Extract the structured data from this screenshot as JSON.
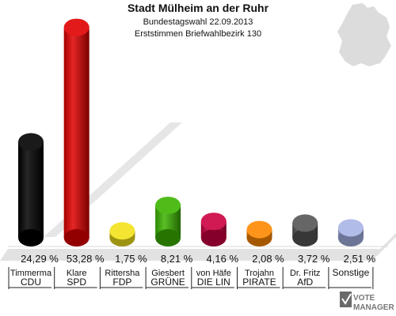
{
  "chart_data": {
    "type": "bar",
    "title": "Stadt Mülheim an der Ruhr",
    "subtitle": "Bundestagswahl 22.09.2013",
    "subtitle2": "Erststimmen Briefwahlbezirk 130",
    "unit": "%",
    "ylim": [
      0,
      55
    ],
    "categories": [
      {
        "candidate": "Timmerma",
        "party": "CDU"
      },
      {
        "candidate": "Klare",
        "party": "SPD"
      },
      {
        "candidate": "Rittersha",
        "party": "FDP"
      },
      {
        "candidate": "Giesbert",
        "party": "GRÜNE"
      },
      {
        "candidate": "von Häfe",
        "party": "DIE LIN"
      },
      {
        "candidate": "Trojahn",
        "party": "PIRATE"
      },
      {
        "candidate": "Dr. Fritz",
        "party": "AfD"
      },
      {
        "candidate": "",
        "party": "Sonstige"
      }
    ],
    "values": [
      24.29,
      53.28,
      1.75,
      8.21,
      4.16,
      2.08,
      3.72,
      2.51
    ],
    "value_labels": [
      "24,29 %",
      "53,28 %",
      "1,75 %",
      "8,21 %",
      "4,16 %",
      "2,08 %",
      "3,72 %",
      "2,51 %"
    ],
    "colors": [
      "#000000",
      "#e00000",
      "#f2e21a",
      "#3cb400",
      "#cc0040",
      "#ff8800",
      "#555555",
      "#a8b4e6"
    ],
    "grid": false,
    "legend": "none"
  },
  "branding": {
    "logo_line1": "VOTE",
    "logo_line2": "MANAGER"
  }
}
